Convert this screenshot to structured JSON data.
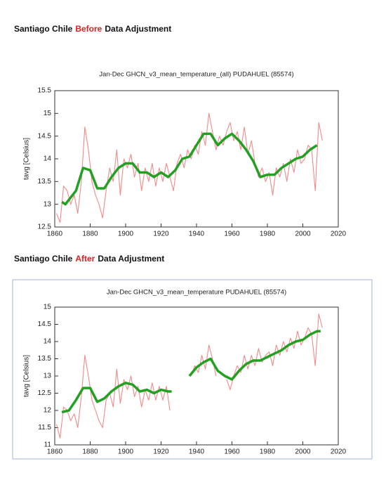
{
  "headings": [
    {
      "prefix": "Santiago Chile",
      "highlight": "Before",
      "suffix": "Data Adjustment"
    },
    {
      "prefix": "Santiago Chile",
      "highlight": "After",
      "suffix": "Data Adjustment"
    }
  ],
  "chart_data": [
    {
      "type": "line",
      "title": "Jan-Dec GHCN_v3_mean_temperature_(all) PUDAHUEL (85574)",
      "y_label": "tavg [Celsius]",
      "xlim": [
        1860,
        2020
      ],
      "xticks": [
        1860,
        1880,
        1900,
        1920,
        1940,
        1960,
        1980,
        2000,
        2020
      ],
      "ylim": [
        12.5,
        15.5
      ],
      "yticks": [
        12.5,
        13,
        13.5,
        14,
        14.5,
        15,
        15.5
      ],
      "grid": false,
      "series": [
        {
          "color": "#f08a8a",
          "style": "step",
          "x": [
            1861,
            1863,
            1865,
            1867,
            1869,
            1871,
            1873,
            1875,
            1877,
            1879,
            1881,
            1883,
            1885,
            1887,
            1889,
            1891,
            1893,
            1895,
            1897,
            1899,
            1901,
            1903,
            1905,
            1907,
            1909,
            1911,
            1913,
            1915,
            1917,
            1919,
            1921,
            1923,
            1925,
            1927,
            1929,
            1931,
            1933,
            1935,
            1937,
            1939,
            1941,
            1943,
            1945,
            1947,
            1949,
            1951,
            1953,
            1955,
            1957,
            1959,
            1961,
            1963,
            1965,
            1967,
            1969,
            1971,
            1973,
            1975,
            1977,
            1979,
            1981,
            1983,
            1985,
            1987,
            1989,
            1991,
            1993,
            1995,
            1997,
            1999,
            2001,
            2003,
            2005,
            2007,
            2009,
            2011
          ],
          "values": [
            12.8,
            12.6,
            13.4,
            13.3,
            13.0,
            13.2,
            12.8,
            13.5,
            14.7,
            14.2,
            13.5,
            13.2,
            13.0,
            12.7,
            13.3,
            13.8,
            13.5,
            14.2,
            13.2,
            14.0,
            13.8,
            14.1,
            13.6,
            13.9,
            13.3,
            13.8,
            13.5,
            13.9,
            13.4,
            13.8,
            13.5,
            13.9,
            13.6,
            13.3,
            13.9,
            14.1,
            13.8,
            14.2,
            14.0,
            14.3,
            14.1,
            14.6,
            14.3,
            15.0,
            14.6,
            14.2,
            14.5,
            14.3,
            14.6,
            14.8,
            14.4,
            14.6,
            14.2,
            14.7,
            14.1,
            14.4,
            13.9,
            13.6,
            13.8,
            13.5,
            13.7,
            13.2,
            13.8,
            13.6,
            13.9,
            13.5,
            14.0,
            13.7,
            14.2,
            13.9,
            14.0,
            14.3,
            14.2,
            13.3,
            14.8,
            14.4
          ]
        },
        {
          "color": "#22a022",
          "style": "thick",
          "x": [
            1864,
            1866,
            1868,
            1872,
            1876,
            1880,
            1884,
            1888,
            1892,
            1896,
            1900,
            1904,
            1908,
            1912,
            1916,
            1920,
            1924,
            1928,
            1932,
            1936,
            1940,
            1944,
            1948,
            1952,
            1956,
            1960,
            1964,
            1968,
            1972,
            1976,
            1980,
            1984,
            1988,
            1992,
            1996,
            2000,
            2004,
            2008
          ],
          "values": [
            13.05,
            13.0,
            13.1,
            13.3,
            13.8,
            13.75,
            13.35,
            13.35,
            13.6,
            13.8,
            13.9,
            13.9,
            13.7,
            13.7,
            13.6,
            13.7,
            13.6,
            13.75,
            14.0,
            14.05,
            14.3,
            14.55,
            14.55,
            14.3,
            14.45,
            14.55,
            14.4,
            14.2,
            13.95,
            13.6,
            13.65,
            13.65,
            13.8,
            13.9,
            14.0,
            14.05,
            14.2,
            14.3
          ]
        }
      ]
    },
    {
      "type": "line",
      "title": "Jan-Dec GHCN_v3_mean_temperature PUDAHUEL (85574)",
      "y_label": "tavg [Celsius]",
      "xlim": [
        1860,
        2020
      ],
      "xticks": [
        1860,
        1880,
        1900,
        1920,
        1940,
        1960,
        1980,
        2000,
        2020
      ],
      "ylim": [
        11,
        15
      ],
      "yticks": [
        11,
        11.5,
        12,
        12.5,
        13,
        13.5,
        14,
        14.5,
        15
      ],
      "grid": false,
      "series": [
        {
          "color": "#f08a8a",
          "style": "step",
          "x": [
            1861,
            1863,
            1865,
            1867,
            1869,
            1871,
            1873,
            1875,
            1877,
            1879,
            1881,
            1883,
            1885,
            1887,
            1889,
            1891,
            1893,
            1895,
            1897,
            1899,
            1901,
            1903,
            1905,
            1907,
            1909,
            1911,
            1913,
            1915,
            1917,
            1919,
            1921,
            1923,
            1925,
            1927,
            1937,
            1939,
            1941,
            1943,
            1945,
            1947,
            1949,
            1951,
            1953,
            1957,
            1959,
            1961,
            1963,
            1965,
            1967,
            1969,
            1971,
            1973,
            1975,
            1977,
            1979,
            1981,
            1983,
            1985,
            1987,
            1989,
            1991,
            1993,
            1995,
            1997,
            1999,
            2001,
            2003,
            2005,
            2007,
            2009,
            2011
          ],
          "values": [
            11.6,
            11.2,
            12.1,
            12.0,
            11.7,
            11.9,
            11.5,
            12.4,
            13.6,
            13.0,
            12.3,
            12.0,
            11.7,
            11.5,
            12.3,
            12.5,
            12.1,
            13.2,
            12.2,
            12.9,
            12.6,
            13.0,
            12.4,
            12.7,
            12.1,
            12.6,
            12.3,
            12.8,
            12.3,
            12.7,
            12.3,
            12.7,
            12.0,
            null,
            13.0,
            13.3,
            13.1,
            13.6,
            13.2,
            13.9,
            13.5,
            13.0,
            null,
            12.9,
            12.6,
            13.0,
            13.3,
            13.1,
            13.6,
            13.2,
            13.6,
            13.3,
            13.8,
            13.4,
            13.6,
            13.7,
            13.3,
            13.9,
            13.6,
            14.0,
            13.7,
            14.1,
            13.8,
            14.3,
            13.9,
            14.1,
            14.4,
            14.2,
            13.3,
            14.8,
            14.4
          ]
        },
        {
          "color": "#22a022",
          "style": "thick",
          "x": [
            1864,
            1868,
            1872,
            1876,
            1880,
            1884,
            1888,
            1892,
            1896,
            1900,
            1904,
            1908,
            1912,
            1916,
            1920,
            1924,
            1926,
            1928,
            1936,
            1940,
            1944,
            1948,
            1952,
            1956,
            1960,
            1964,
            1968,
            1972,
            1976,
            1980,
            1984,
            1988,
            1992,
            1996,
            2000,
            2004,
            2008,
            2010
          ],
          "values": [
            11.95,
            12.0,
            12.3,
            12.65,
            12.65,
            12.25,
            12.35,
            12.55,
            12.7,
            12.8,
            12.75,
            12.55,
            12.6,
            12.5,
            12.6,
            12.55,
            12.55,
            null,
            13.0,
            13.25,
            13.4,
            13.5,
            13.15,
            13.0,
            12.9,
            13.15,
            13.35,
            13.45,
            13.45,
            13.55,
            13.65,
            13.75,
            13.9,
            14.0,
            14.05,
            14.2,
            14.3,
            14.3
          ]
        }
      ]
    }
  ]
}
